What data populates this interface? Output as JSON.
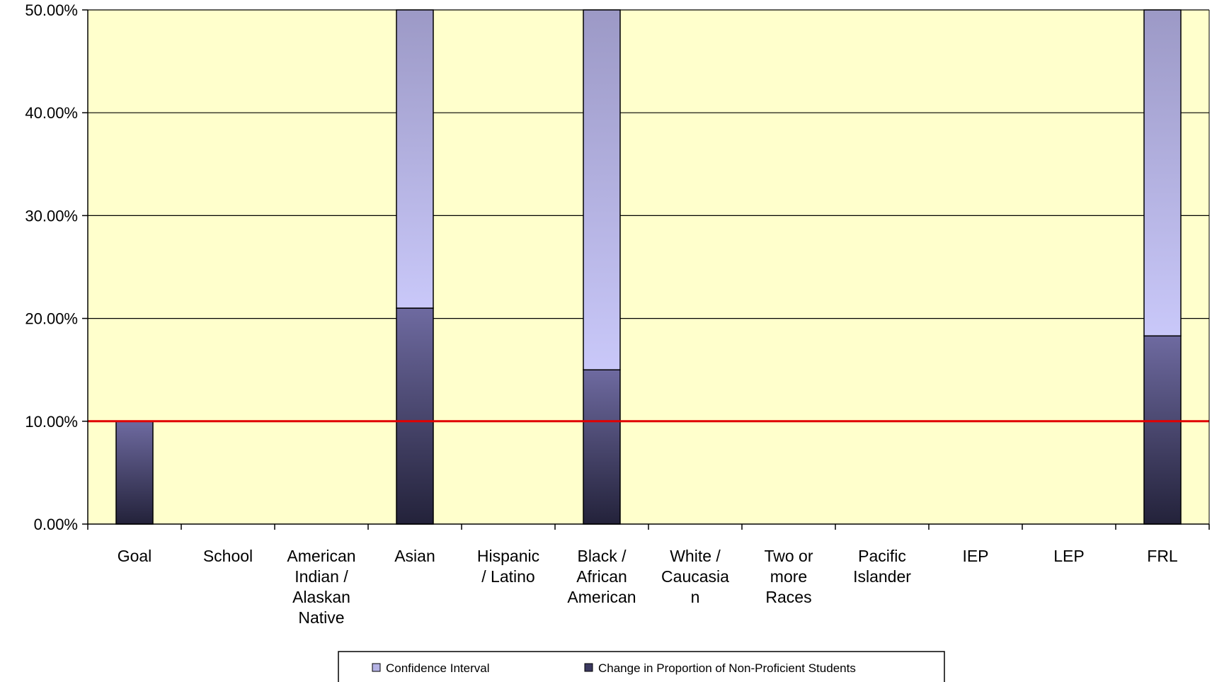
{
  "chart_data": {
    "type": "bar",
    "stacked": true,
    "categories": [
      [
        "Goal"
      ],
      [
        "School"
      ],
      [
        "American",
        "Indian /",
        "Alaskan",
        "Native"
      ],
      [
        "Asian"
      ],
      [
        "Hispanic",
        "/ Latino"
      ],
      [
        "Black /",
        "African",
        "American"
      ],
      [
        "White /",
        "Caucasia",
        "n"
      ],
      [
        "Two or",
        "more",
        "Races"
      ],
      [
        "Pacific",
        "Islander"
      ],
      [
        "IEP"
      ],
      [
        "LEP"
      ],
      [
        "FRL"
      ]
    ],
    "series": [
      {
        "name": "Change in Proportion of Non-Proficient Students",
        "values": [
          10,
          0,
          0,
          21,
          0,
          15,
          0,
          0,
          0,
          0,
          0,
          18.3
        ],
        "color_top": "#6e6aa0",
        "color_bottom": "#23223a"
      },
      {
        "name": "Confidence Interval",
        "values": [
          0,
          0,
          0,
          29,
          0,
          35,
          0,
          0,
          0,
          0,
          0,
          31.7
        ],
        "color_top": "#9c99c6",
        "color_bottom": "#c9c8f9"
      }
    ],
    "ylim": [
      0,
      50
    ],
    "yticks": [
      "0.00%",
      "10.00%",
      "20.00%",
      "30.00%",
      "40.00%",
      "50.00%"
    ],
    "ytick_values": [
      0,
      10,
      20,
      30,
      40,
      50
    ],
    "goal_line": 10,
    "goal_line_color": "#e00000",
    "plot_background": "#ffffcc",
    "grid": true,
    "legend_position": "bottom",
    "legend_order": [
      "Confidence Interval",
      "Change in Proportion of Non-Proficient Students"
    ]
  }
}
